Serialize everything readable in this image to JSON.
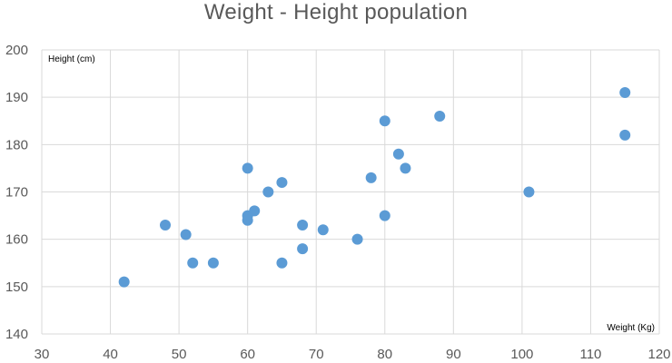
{
  "chart_data": {
    "type": "scatter",
    "title": "Weight - Height population",
    "xlabel": "Weight (Kg)",
    "ylabel": "Height (cm)",
    "xlim": [
      30,
      120
    ],
    "ylim": [
      140,
      200
    ],
    "xticks": [
      "30",
      "40",
      "50",
      "60",
      "70",
      "80",
      "90",
      "100",
      "110",
      "120"
    ],
    "yticks": [
      "140",
      "150",
      "160",
      "170",
      "180",
      "190",
      "200"
    ],
    "grid": true,
    "legend": "none",
    "series": [
      {
        "color": "#5B9BD5",
        "points": [
          [
            42,
            151
          ],
          [
            48,
            163
          ],
          [
            51,
            161
          ],
          [
            52,
            155
          ],
          [
            55,
            155
          ],
          [
            60,
            175
          ],
          [
            60,
            165
          ],
          [
            60,
            164
          ],
          [
            61,
            166
          ],
          [
            63,
            170
          ],
          [
            65,
            172
          ],
          [
            65,
            155
          ],
          [
            68,
            163
          ],
          [
            68,
            158
          ],
          [
            71,
            162
          ],
          [
            76,
            160
          ],
          [
            78,
            173
          ],
          [
            80,
            185
          ],
          [
            80,
            165
          ],
          [
            82,
            178
          ],
          [
            83,
            175
          ],
          [
            88,
            186
          ],
          [
            101,
            170
          ],
          [
            115,
            191
          ],
          [
            115,
            182
          ]
        ]
      }
    ]
  }
}
